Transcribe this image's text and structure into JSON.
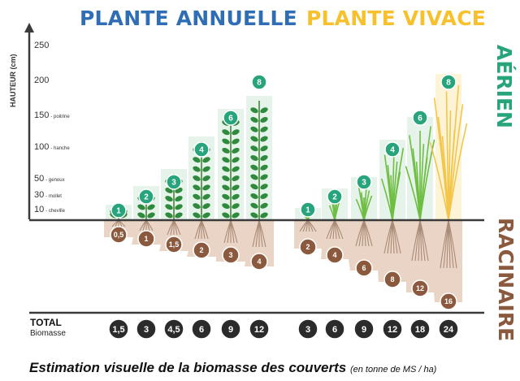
{
  "titles": {
    "annual": "PLANTE ANNUELLE",
    "perennial": "PLANTE VIVACE"
  },
  "side_labels": {
    "aerial": "AÉRIEN",
    "root": "RACINAIRE"
  },
  "y_axis": {
    "title": "HAUTEUR (cm)",
    "ticks": [
      {
        "value": "250",
        "note": ""
      },
      {
        "value": "200",
        "note": ""
      },
      {
        "value": "150",
        "note": "- poitrine"
      },
      {
        "value": "100",
        "note": "- hanche"
      },
      {
        "value": "50",
        "note": "- genoux"
      },
      {
        "value": "30",
        "note": "- mollet"
      },
      {
        "value": "10",
        "note": "- cheville"
      }
    ]
  },
  "annual": {
    "aerial": [
      "1",
      "2",
      "3",
      "4",
      "6",
      "8"
    ],
    "root": [
      "0,5",
      "1",
      "1,5",
      "2",
      "3",
      "4"
    ],
    "total": [
      "1,5",
      "3",
      "4,5",
      "6",
      "9",
      "12"
    ]
  },
  "perennial": {
    "aerial": [
      "1",
      "2",
      "3",
      "4",
      "6",
      "8"
    ],
    "root": [
      "2",
      "4",
      "6",
      "8",
      "12",
      "16"
    ],
    "total": [
      "3",
      "6",
      "9",
      "12",
      "18",
      "24"
    ]
  },
  "total_label": "TOTAL",
  "biomass_label": "Biomasse",
  "caption": {
    "main": "Estimation visuelle de la biomasse des couverts",
    "unit": "(en tonne de MS / ha)"
  },
  "colors": {
    "annual_title": "#2f6db5",
    "perennial_title": "#f6c12c",
    "aerial": "#27a47c",
    "root_badge": "#8b5a3e",
    "soil": "#e9d4c5",
    "axis": "#3a3a3a",
    "total_badge": "#2b2b2b",
    "leaf": "#2f8a3e",
    "grass": "#6fbe44",
    "dry_grass": "#f3c64b"
  }
}
